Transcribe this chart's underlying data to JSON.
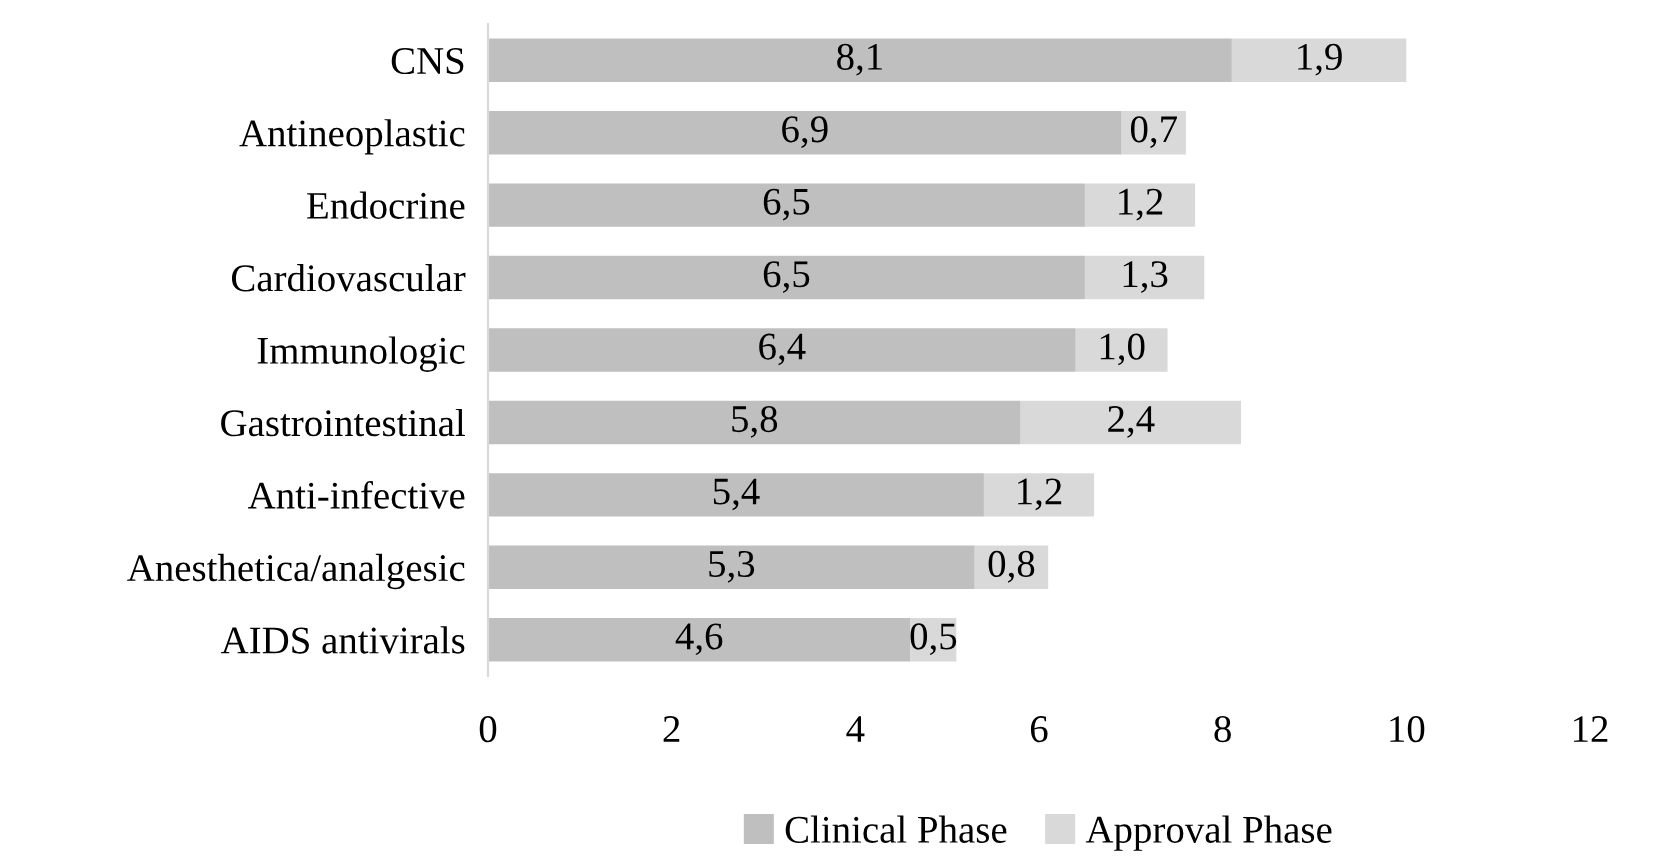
{
  "chart_data": {
    "type": "bar",
    "orientation": "horizontal",
    "stacked": true,
    "categories": [
      "CNS",
      "Antineoplastic",
      "Endocrine",
      "Cardiovascular",
      "Immunologic",
      "Gastrointestinal",
      "Anti-infective",
      "Anesthetica/analgesic",
      "AIDS antivirals"
    ],
    "series": [
      {
        "name": "Clinical Phase",
        "color": "#bfbfbf",
        "values": [
          8.1,
          6.9,
          6.5,
          6.5,
          6.4,
          5.8,
          5.4,
          5.3,
          4.6
        ],
        "value_labels": [
          "8,1",
          "6,9",
          "6,5",
          "6,5",
          "6,4",
          "5,8",
          "5,4",
          "5,3",
          "4,6"
        ]
      },
      {
        "name": "Approval Phase",
        "color": "#d9d9d9",
        "values": [
          1.9,
          0.7,
          1.2,
          1.3,
          1.0,
          2.4,
          1.2,
          0.8,
          0.5
        ],
        "value_labels": [
          "1,9",
          "0,7",
          "1,2",
          "1,3",
          "1,0",
          "2,4",
          "1,2",
          "0,8",
          "0,5"
        ]
      }
    ],
    "xlim": [
      0,
      12
    ],
    "xticks": [
      0,
      2,
      4,
      6,
      8,
      10,
      12
    ],
    "grid": false,
    "legend": "bottom"
  }
}
